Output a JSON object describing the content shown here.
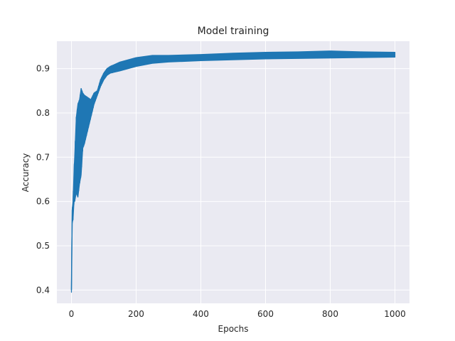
{
  "chart_data": {
    "type": "line",
    "title": "Model training",
    "xlabel": "Epochs",
    "ylabel": "Accuracy",
    "xlim": [
      -45,
      1045
    ],
    "ylim": [
      0.37,
      0.962
    ],
    "xticks": [
      0,
      200,
      400,
      600,
      800,
      1000
    ],
    "xtick_labels": [
      "0",
      "200",
      "400",
      "600",
      "800",
      "1000"
    ],
    "yticks": [
      0.4,
      0.5,
      0.6,
      0.7,
      0.8,
      0.9
    ],
    "ytick_labels": [
      "0.4",
      "0.5",
      "0.6",
      "0.7",
      "0.8",
      "0.9"
    ],
    "grid": true,
    "style": "seaborn-darkgrid",
    "colors": {
      "line": "#1f77b4",
      "plot_background": "#eaeaf2",
      "grid": "#ffffff",
      "text": "#262626"
    },
    "series": [
      {
        "color": "#1f77b4",
        "envelope": [
          {
            "x": 0,
            "low": 0.395,
            "high": 0.4
          },
          {
            "x": 2,
            "low": 0.55,
            "high": 0.58
          },
          {
            "x": 5,
            "low": 0.56,
            "high": 0.6
          },
          {
            "x": 8,
            "low": 0.6,
            "high": 0.67
          },
          {
            "x": 10,
            "low": 0.6,
            "high": 0.7
          },
          {
            "x": 15,
            "low": 0.62,
            "high": 0.79
          },
          {
            "x": 20,
            "low": 0.61,
            "high": 0.82
          },
          {
            "x": 25,
            "low": 0.64,
            "high": 0.83
          },
          {
            "x": 30,
            "low": 0.66,
            "high": 0.855
          },
          {
            "x": 35,
            "low": 0.72,
            "high": 0.845
          },
          {
            "x": 40,
            "low": 0.73,
            "high": 0.84
          },
          {
            "x": 50,
            "low": 0.76,
            "high": 0.835
          },
          {
            "x": 60,
            "low": 0.79,
            "high": 0.83
          },
          {
            "x": 70,
            "low": 0.82,
            "high": 0.845
          },
          {
            "x": 80,
            "low": 0.84,
            "high": 0.85
          },
          {
            "x": 90,
            "low": 0.86,
            "high": 0.875
          },
          {
            "x": 100,
            "low": 0.875,
            "high": 0.89
          },
          {
            "x": 110,
            "low": 0.885,
            "high": 0.9
          },
          {
            "x": 120,
            "low": 0.89,
            "high": 0.905
          },
          {
            "x": 150,
            "low": 0.895,
            "high": 0.915
          },
          {
            "x": 200,
            "low": 0.905,
            "high": 0.925
          },
          {
            "x": 250,
            "low": 0.912,
            "high": 0.93
          },
          {
            "x": 300,
            "low": 0.915,
            "high": 0.93
          },
          {
            "x": 400,
            "low": 0.918,
            "high": 0.932
          },
          {
            "x": 500,
            "low": 0.92,
            "high": 0.935
          },
          {
            "x": 600,
            "low": 0.922,
            "high": 0.937
          },
          {
            "x": 700,
            "low": 0.923,
            "high": 0.938
          },
          {
            "x": 800,
            "low": 0.924,
            "high": 0.94
          },
          {
            "x": 900,
            "low": 0.925,
            "high": 0.938
          },
          {
            "x": 1000,
            "low": 0.926,
            "high": 0.937
          }
        ]
      }
    ]
  }
}
